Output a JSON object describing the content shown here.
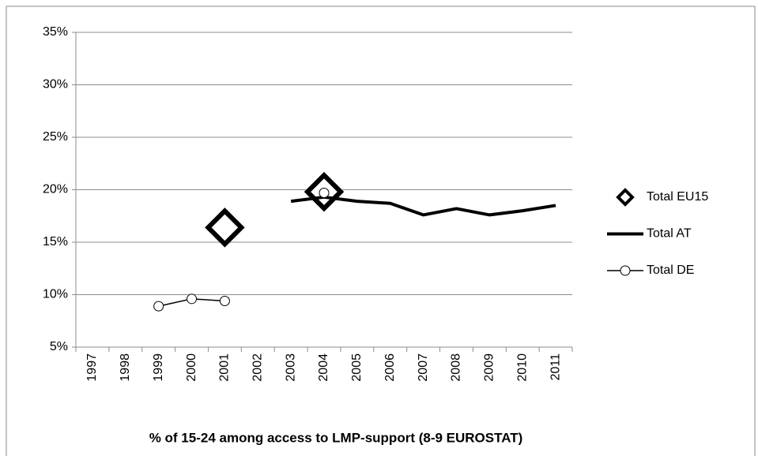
{
  "chart_data": {
    "type": "line",
    "x_label": "% of 15-24 among access to LMP-support (8-9 EUROSTAT)",
    "categories": [
      "1997",
      "1998",
      "1999",
      "2000",
      "2001",
      "2002",
      "2003",
      "2004",
      "2005",
      "2006",
      "2007",
      "2008",
      "2009",
      "2010",
      "2011"
    ],
    "series": [
      {
        "name": "Total EU15",
        "color": "#000000",
        "marker": "diamond",
        "line_width": 0,
        "values": [
          null,
          null,
          null,
          null,
          16.4,
          null,
          null,
          19.8,
          null,
          null,
          null,
          null,
          null,
          null,
          null
        ]
      },
      {
        "name": "Total AT",
        "color": "#000000",
        "marker": "none",
        "line_width": 4,
        "values": [
          null,
          null,
          null,
          null,
          null,
          null,
          18.9,
          19.3,
          18.9,
          18.7,
          17.6,
          18.2,
          17.6,
          18.0,
          18.5
        ]
      },
      {
        "name": "Total DE",
        "color": "#000000",
        "marker": "circle",
        "line_width": 1.5,
        "values": [
          null,
          null,
          8.9,
          9.6,
          9.4,
          null,
          null,
          19.7,
          null,
          null,
          null,
          null,
          null,
          null,
          null
        ]
      }
    ],
    "ylim": [
      5,
      35
    ],
    "yticks": [
      {
        "value": 5,
        "label": "5%"
      },
      {
        "value": 10,
        "label": "10%"
      },
      {
        "value": 15,
        "label": "15%"
      },
      {
        "value": 20,
        "label": "20%"
      },
      {
        "value": 25,
        "label": "25%"
      },
      {
        "value": 30,
        "label": "30%"
      },
      {
        "value": 35,
        "label": "35%"
      }
    ],
    "grid": true,
    "legend": "right"
  }
}
